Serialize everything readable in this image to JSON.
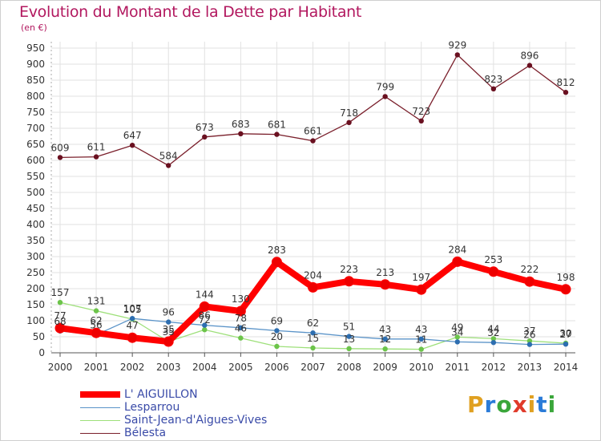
{
  "title": "Evolution du Montant de la Dette par Habitant",
  "unit": "(en €)",
  "logo": {
    "letters": [
      "P",
      "r",
      "o",
      "x",
      "i",
      "t",
      "i"
    ],
    "colors": [
      "#e0a020",
      "#2a7bd8",
      "#3aa63a",
      "#e03a2a",
      "#e0a020",
      "#2a7bd8",
      "#3aa63a"
    ]
  },
  "chart_data": {
    "type": "line",
    "x": [
      "2000",
      "2001",
      "2002",
      "2003",
      "2004",
      "2005",
      "2006",
      "2007",
      "2008",
      "2009",
      "2010",
      "2011",
      "2012",
      "2013",
      "2014"
    ],
    "ylim": [
      0,
      950
    ],
    "yticks": [
      "0",
      "50",
      "100",
      "150",
      "200",
      "250",
      "300",
      "350",
      "400",
      "450",
      "500",
      "550",
      "600",
      "650",
      "700",
      "750",
      "800",
      "850",
      "900",
      "950"
    ],
    "grid": true,
    "legend_position": "bottom-left",
    "series": [
      {
        "name": "Bélesta",
        "color": "#7a1f2b",
        "marker_color": "#6a1020",
        "values": [
          609,
          611,
          647,
          584,
          673,
          683,
          681,
          661,
          718,
          799,
          723,
          929,
          823,
          896,
          812
        ],
        "labels": [
          "609",
          "611",
          "647",
          "584",
          "673",
          "683",
          "681",
          "661",
          "718",
          "799",
          "723",
          "929",
          "823",
          "896",
          "812"
        ]
      },
      {
        "name": "Saint-Jean-d'Aigues-Vives",
        "color": "#9ee07a",
        "marker_color": "#6cc44a",
        "values": [
          157,
          131,
          105,
          35,
          72,
          46,
          20,
          15,
          13,
          12,
          11,
          49,
          44,
          37,
          30
        ],
        "labels": [
          "157",
          "131",
          "105",
          "35",
          "72",
          "46",
          "20",
          "15",
          "13",
          "12",
          "11",
          "49",
          "44",
          "37",
          "30"
        ]
      },
      {
        "name": "Lesparrou",
        "color": "#5a93c8",
        "marker_color": "#2d6eb0",
        "values": [
          68,
          56,
          107,
          96,
          86,
          78,
          69,
          62,
          51,
          43,
          43,
          34,
          32,
          26,
          27
        ],
        "labels": [
          "68",
          "56",
          "107",
          "96",
          "86",
          "78",
          "69",
          "62",
          "51",
          "43",
          "43",
          "34",
          "32",
          "26",
          "27"
        ]
      },
      {
        "name": "L' AIGUILLON",
        "color": "#ff0000",
        "marker_color": "#ee0000",
        "values": [
          77,
          62,
          47,
          35,
          144,
          130,
          283,
          204,
          223,
          213,
          197,
          284,
          253,
          222,
          198
        ],
        "labels": [
          "77",
          "62",
          "47",
          "35",
          "144",
          "130",
          "283",
          "204",
          "223",
          "213",
          "197",
          "284",
          "253",
          "222",
          "198"
        ]
      }
    ]
  },
  "legend": [
    {
      "name": "L' AIGUILLON",
      "color": "#ff0000",
      "width": 8
    },
    {
      "name": "Lesparrou",
      "color": "#5a93c8",
      "width": 1
    },
    {
      "name": "Saint-Jean-d'Aigues-Vives",
      "color": "#9ee07a",
      "width": 1
    },
    {
      "name": "Bélesta",
      "color": "#7a1f2b",
      "width": 1
    }
  ]
}
